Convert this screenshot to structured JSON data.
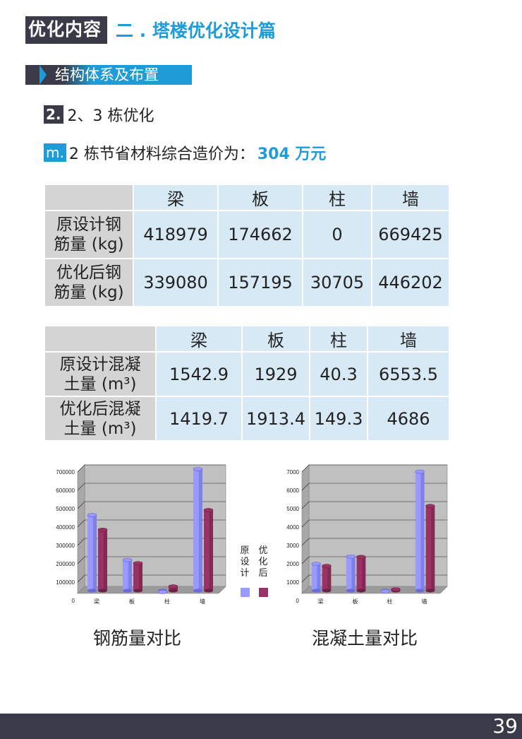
{
  "header": {
    "tag": "优化内容",
    "title": "二 . 塔楼优化设计篇"
  },
  "section": {
    "title": "结构体系及布置"
  },
  "sub1": {
    "num": "2.",
    "text": "2、3 栋优化"
  },
  "sub2": {
    "num": "m.",
    "text": "2 栋节省材料综合造价为：",
    "highlight": "304 万元"
  },
  "table1": {
    "headers": [
      "梁",
      "板",
      "柱",
      "墙"
    ],
    "rows": [
      {
        "label": [
          "原设计钢",
          "筋量 (kg)"
        ],
        "values": [
          "418979",
          "174662",
          "0",
          "669425"
        ]
      },
      {
        "label": [
          "优化后钢",
          "筋量 (kg)"
        ],
        "values": [
          "339080",
          "157195",
          "30705",
          "446202"
        ]
      }
    ]
  },
  "table2": {
    "headers": [
      "梁",
      "板",
      "柱",
      "墙"
    ],
    "rows": [
      {
        "label": [
          "原设计混凝",
          "土量 (m³)"
        ],
        "values": [
          "1542.9",
          "1929",
          "40.3",
          "6553.5"
        ]
      },
      {
        "label": [
          "优化后混凝",
          "土量 (m³)"
        ],
        "values": [
          "1419.7",
          "1913.4",
          "149.3",
          "4686"
        ]
      }
    ]
  },
  "legend": {
    "original": [
      "原",
      "设",
      "计"
    ],
    "optimized": [
      "优",
      "化",
      "后"
    ],
    "original_color": "#9999ff",
    "optimized_color": "#993366"
  },
  "chart_data": [
    {
      "type": "bar",
      "categories": [
        "梁",
        "板",
        "柱",
        "墙"
      ],
      "series": [
        {
          "values": [
            418979,
            174662,
            0,
            669425
          ]
        },
        {
          "values": [
            339080,
            157195,
            30705,
            446202
          ]
        }
      ],
      "ylim": [
        0,
        700000
      ],
      "yticks": [
        "0",
        "100000",
        "200000",
        "300000",
        "400000",
        "500000",
        "600000",
        "700000"
      ],
      "title": "钢筋量对比",
      "grid": true
    },
    {
      "type": "bar",
      "categories": [
        "梁",
        "板",
        "柱",
        "墙"
      ],
      "series": [
        {
          "values": [
            1542.9,
            1929,
            40.3,
            6553.5
          ]
        },
        {
          "values": [
            1419.7,
            1913.4,
            149.3,
            4686
          ]
        }
      ],
      "ylim": [
        0,
        7000
      ],
      "yticks": [
        "0",
        "1000",
        "2000",
        "3000",
        "4000",
        "5000",
        "6000",
        "7000"
      ],
      "title": "混凝土量对比",
      "grid": true
    }
  ],
  "page_number": "39"
}
